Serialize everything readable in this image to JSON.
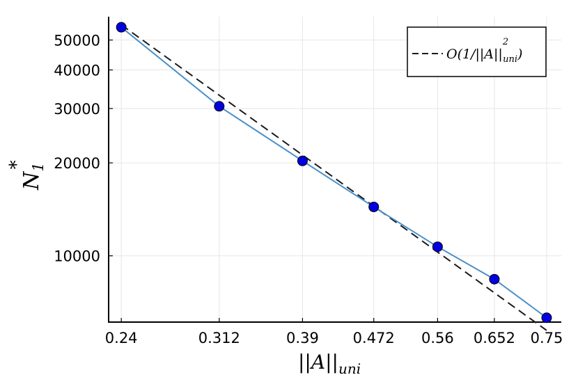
{
  "chart_data": {
    "type": "line",
    "x_scale": "log",
    "y_scale": "log",
    "xlabel_base": "||A||",
    "xlabel_sub": "uni",
    "ylabel_base": "N",
    "ylabel_sub": "1",
    "ylabel_sup": "*",
    "xlim": [
      0.232,
      0.78
    ],
    "ylim": [
      6100,
      59500
    ],
    "x_ticks": [
      0.24,
      0.312,
      0.39,
      0.472,
      0.56,
      0.652,
      0.75
    ],
    "x_tick_labels": [
      "0.24",
      "0.312",
      "0.39",
      "0.472",
      "0.56",
      "0.652",
      "0.75"
    ],
    "y_ticks": [
      10000,
      20000,
      30000,
      40000,
      50000
    ],
    "y_tick_labels": [
      "10000",
      "20000",
      "30000",
      "40000",
      "50000"
    ],
    "grid": true,
    "legend_position": "top-right",
    "series": [
      {
        "kind": "measured",
        "color": "#4a90c8",
        "marker_color": "#0000e0",
        "x": [
          0.24,
          0.312,
          0.39,
          0.472,
          0.56,
          0.652,
          0.75
        ],
        "y": [
          55000,
          30500,
          20300,
          14400,
          10700,
          8400,
          6300
        ]
      },
      {
        "kind": "reference",
        "color": "#1a1a1a",
        "dash": true,
        "legend_label": "O(1/||A||²_uni)",
        "legend_text_main": "O(1/||A||",
        "legend_text_sup": "2",
        "legend_text_sub": "uni",
        "legend_text_end": ")",
        "x": [
          0.24,
          0.75
        ],
        "y": [
          56000,
          5734
        ]
      }
    ]
  }
}
